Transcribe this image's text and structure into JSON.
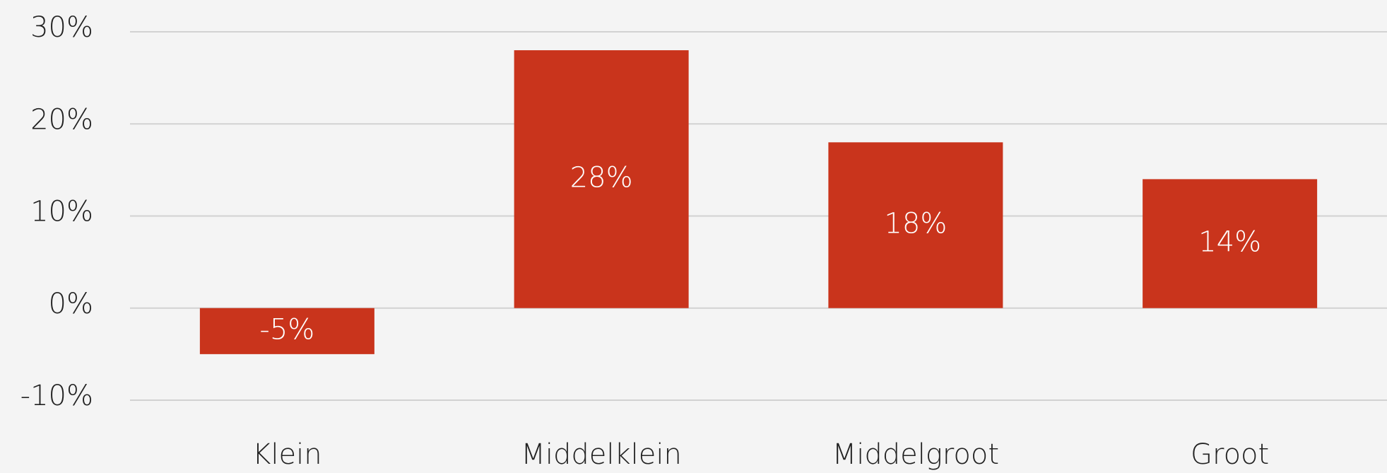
{
  "chart_data": {
    "type": "bar",
    "categories": [
      "Klein",
      "Middelklein",
      "Middelgroot",
      "Groot"
    ],
    "values": [
      -5,
      28,
      18,
      14
    ],
    "value_labels": [
      "-5%",
      "28%",
      "18%",
      "14%"
    ],
    "color": "#c9341c",
    "ylim": [
      -10,
      30
    ],
    "yticks": [
      {
        "value": -10,
        "label": "-10%"
      },
      {
        "value": 0,
        "label": "0%"
      },
      {
        "value": 10,
        "label": "10%"
      },
      {
        "value": 20,
        "label": "20%"
      },
      {
        "value": 30,
        "label": "30%"
      }
    ],
    "grid": true
  }
}
